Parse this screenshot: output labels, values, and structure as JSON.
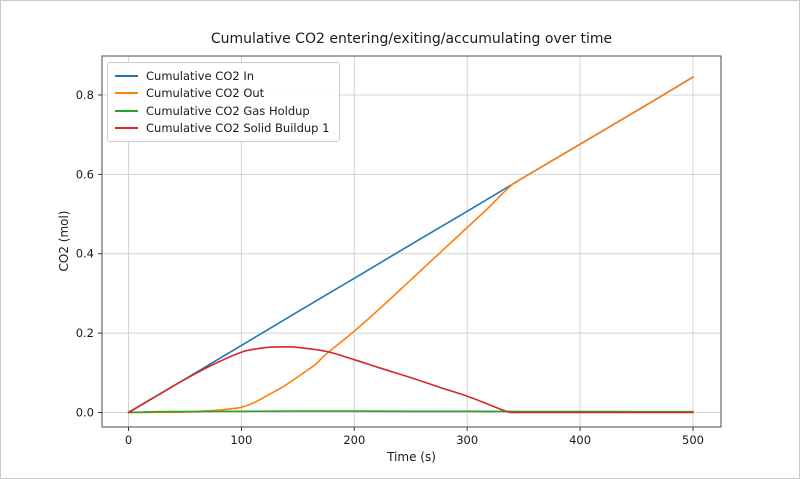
{
  "figure": {
    "kind": "matplotlib line chart screenshot"
  },
  "chart_data": {
    "type": "line",
    "title": "Cumulative CO2 entering/exiting/accumulating over time",
    "xlabel": "Time (s)",
    "ylabel": "CO2 (mol)",
    "xlim": [
      -25,
      525
    ],
    "ylim": [
      -0.042,
      0.887
    ],
    "x_ticks": [
      0,
      100,
      200,
      300,
      400,
      500
    ],
    "y_ticks": [
      0.0,
      0.2,
      0.4,
      0.6,
      0.8
    ],
    "grid": true,
    "legend_position": "upper left",
    "series": [
      {
        "name": "Cumulative CO2 In",
        "color": "#1f77b4",
        "x": [
          0,
          50,
          100,
          150,
          200,
          250,
          300,
          350,
          400,
          450,
          500
        ],
        "y": [
          0,
          0.084,
          0.169,
          0.254,
          0.338,
          0.423,
          0.507,
          0.592,
          0.676,
          0.76,
          0.845
        ]
      },
      {
        "name": "Cumulative CO2 Out",
        "color": "#ff7f0e",
        "x": [
          0,
          25,
          50,
          75,
          90,
          100,
          112,
          125,
          137,
          150,
          165,
          175,
          200,
          225,
          250,
          275,
          300,
          320,
          330,
          336,
          340,
          344,
          350,
          400,
          450,
          500
        ],
        "y": [
          0,
          0.0005,
          0.001,
          0.005,
          0.009,
          0.013,
          0.026,
          0.046,
          0.065,
          0.09,
          0.12,
          0.147,
          0.205,
          0.268,
          0.334,
          0.4,
          0.466,
          0.519,
          0.548,
          0.564,
          0.575,
          0.581,
          0.592,
          0.676,
          0.76,
          0.845
        ]
      },
      {
        "name": "Cumulative CO2 Gas Holdup",
        "color": "#2ca02c",
        "x": [
          0,
          25,
          50,
          100,
          150,
          200,
          250,
          300,
          350,
          400,
          450,
          500
        ],
        "y": [
          0,
          0.002,
          0.0025,
          0.003,
          0.0035,
          0.0035,
          0.003,
          0.003,
          0.0025,
          0.0025,
          0.002,
          0.002
        ]
      },
      {
        "name": "Cumulative CO2 Solid Buildup 1",
        "color": "#d62728",
        "x": [
          0,
          25,
          50,
          75,
          100,
          115,
          125,
          140,
          150,
          175,
          200,
          225,
          250,
          275,
          300,
          315,
          327,
          337,
          340,
          341,
          360,
          400,
          450,
          500
        ],
        "y": [
          0,
          0.042,
          0.0835,
          0.121,
          0.152,
          0.161,
          0.1645,
          0.1655,
          0.164,
          0.154,
          0.133,
          0.11,
          0.088,
          0.064,
          0.041,
          0.025,
          0.011,
          0.001,
          0,
          0,
          0,
          0,
          0,
          0
        ]
      }
    ]
  },
  "legend": {
    "items": [
      {
        "label": "Cumulative CO2 In",
        "color": "#1f77b4"
      },
      {
        "label": "Cumulative CO2 Out",
        "color": "#ff7f0e"
      },
      {
        "label": "Cumulative CO2 Gas Holdup",
        "color": "#2ca02c"
      },
      {
        "label": "Cumulative CO2 Solid Buildup 1",
        "color": "#d62728"
      }
    ]
  },
  "style_colors": {
    "grid": "#d4d4d4",
    "frame": "#4a4a4a",
    "tick": "#343434",
    "text": "#1a1a1a"
  }
}
